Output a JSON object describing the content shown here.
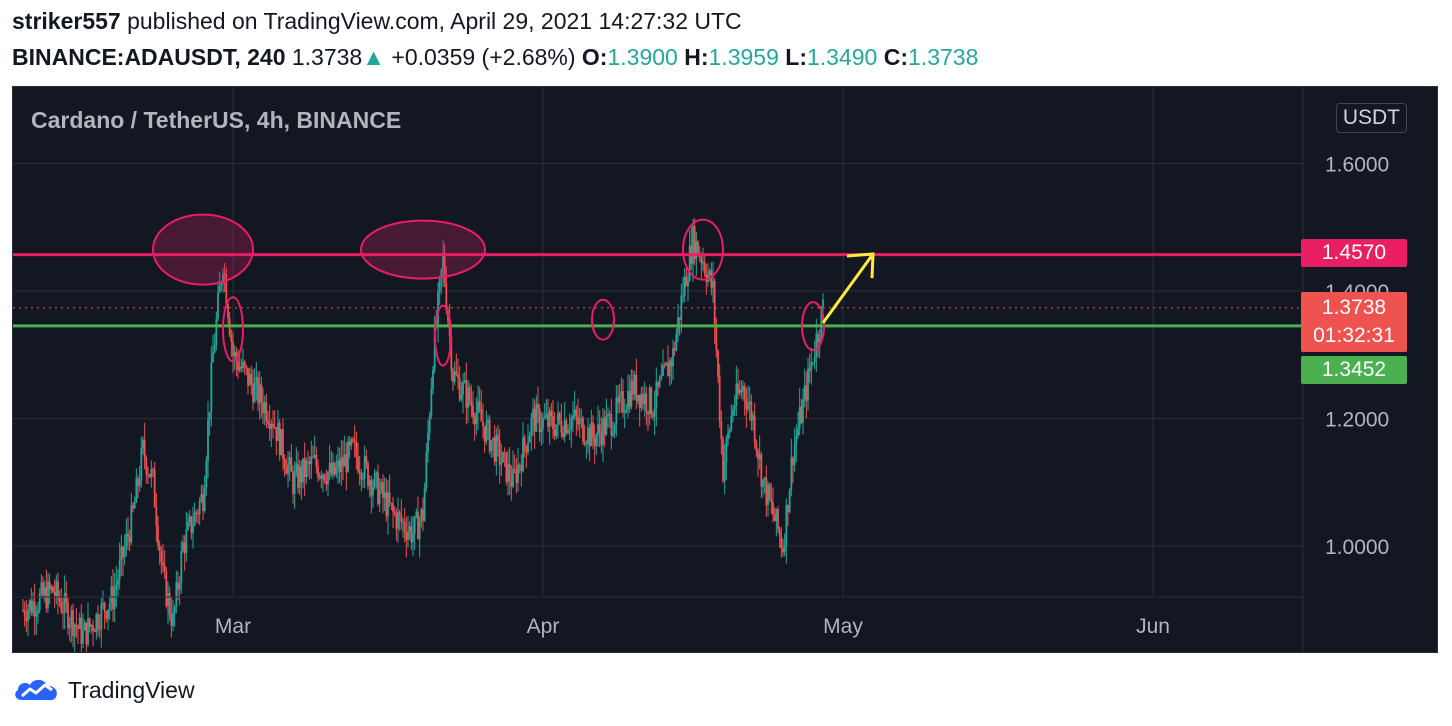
{
  "header": {
    "author": "striker557",
    "published_text": "published on TradingView.com, April 29, 2021 14:27:32 UTC",
    "symbol": "BINANCE:ADAUSDT, 240",
    "last": "1.3738",
    "change": "+0.0359 (+2.68%)",
    "o_label": "O:",
    "o_value": "1.3900",
    "h_label": "H:",
    "h_value": "1.3959",
    "l_label": "L:",
    "l_value": "1.3490",
    "c_label": "C:",
    "c_value": "1.3738"
  },
  "chart_data": {
    "type": "candlestick",
    "title": "Cardano / TetherUS, 4h, BINANCE",
    "unit": "USDT",
    "ylim": [
      0.92,
      1.72
    ],
    "y_ticks": [
      {
        "value": 1.6,
        "label": "1.6000"
      },
      {
        "value": 1.4,
        "label": "1.4000"
      },
      {
        "value": 1.2,
        "label": "1.2000"
      },
      {
        "value": 1.0,
        "label": "1.0000"
      }
    ],
    "x_labels": [
      "Mar",
      "Apr",
      "May",
      "Jun"
    ],
    "xlim": [
      "2021-02-07",
      "2021-06-16"
    ],
    "x_ticks": [
      "2021-03-01",
      "2021-04-01",
      "2021-05-01",
      "2021-06-01"
    ],
    "price_series": [
      [
        "2021-02-08",
        0.9
      ],
      [
        "2021-02-11",
        0.93
      ],
      [
        "2021-02-14",
        0.86
      ],
      [
        "2021-02-17",
        0.92
      ],
      [
        "2021-02-19",
        1.05
      ],
      [
        "2021-02-20",
        1.15
      ],
      [
        "2021-02-21",
        1.1
      ],
      [
        "2021-02-22",
        0.95
      ],
      [
        "2021-02-23",
        0.88
      ],
      [
        "2021-02-24",
        1.0
      ],
      [
        "2021-02-26",
        1.08
      ],
      [
        "2021-02-27",
        1.3
      ],
      [
        "2021-02-28",
        1.45
      ],
      [
        "2021-03-01",
        1.3
      ],
      [
        "2021-03-03",
        1.25
      ],
      [
        "2021-03-05",
        1.2
      ],
      [
        "2021-03-07",
        1.1
      ],
      [
        "2021-03-09",
        1.13
      ],
      [
        "2021-03-11",
        1.11
      ],
      [
        "2021-03-13",
        1.15
      ],
      [
        "2021-03-15",
        1.1
      ],
      [
        "2021-03-17",
        1.05
      ],
      [
        "2021-03-19",
        1.02
      ],
      [
        "2021-03-20",
        1.05
      ],
      [
        "2021-03-21",
        1.3
      ],
      [
        "2021-03-22",
        1.45
      ],
      [
        "2021-03-23",
        1.27
      ],
      [
        "2021-03-25",
        1.22
      ],
      [
        "2021-03-27",
        1.16
      ],
      [
        "2021-03-29",
        1.1
      ],
      [
        "2021-03-31",
        1.2
      ],
      [
        "2021-04-02",
        1.19
      ],
      [
        "2021-04-04",
        1.2
      ],
      [
        "2021-04-06",
        1.17
      ],
      [
        "2021-04-08",
        1.2
      ],
      [
        "2021-04-10",
        1.25
      ],
      [
        "2021-04-12",
        1.22
      ],
      [
        "2021-04-14",
        1.3
      ],
      [
        "2021-04-15",
        1.4
      ],
      [
        "2021-04-16",
        1.48
      ],
      [
        "2021-04-17",
        1.45
      ],
      [
        "2021-04-18",
        1.4
      ],
      [
        "2021-04-19",
        1.12
      ],
      [
        "2021-04-20",
        1.22
      ],
      [
        "2021-04-21",
        1.25
      ],
      [
        "2021-04-22",
        1.2
      ],
      [
        "2021-04-23",
        1.1
      ],
      [
        "2021-04-24",
        1.05
      ],
      [
        "2021-04-25",
        1.0
      ],
      [
        "2021-04-26",
        1.15
      ],
      [
        "2021-04-27",
        1.22
      ],
      [
        "2021-04-28",
        1.3
      ],
      [
        "2021-04-29",
        1.3738
      ]
    ],
    "levels": [
      {
        "label": "1.4570",
        "value": 1.457,
        "color": "#e91e63"
      },
      {
        "label": "1.3452",
        "value": 1.3452,
        "color": "#4caf50"
      }
    ],
    "last_price": {
      "label": "1.3738",
      "countdown": "01:32:31",
      "value": 1.3738,
      "color": "#ef5350"
    },
    "colors": {
      "up": "#26a69a",
      "down": "#ef5350",
      "background": "#131722",
      "grid": "#2a2e39",
      "arrow": "#ffeb3b"
    }
  },
  "footer": {
    "brand": "TradingView"
  }
}
